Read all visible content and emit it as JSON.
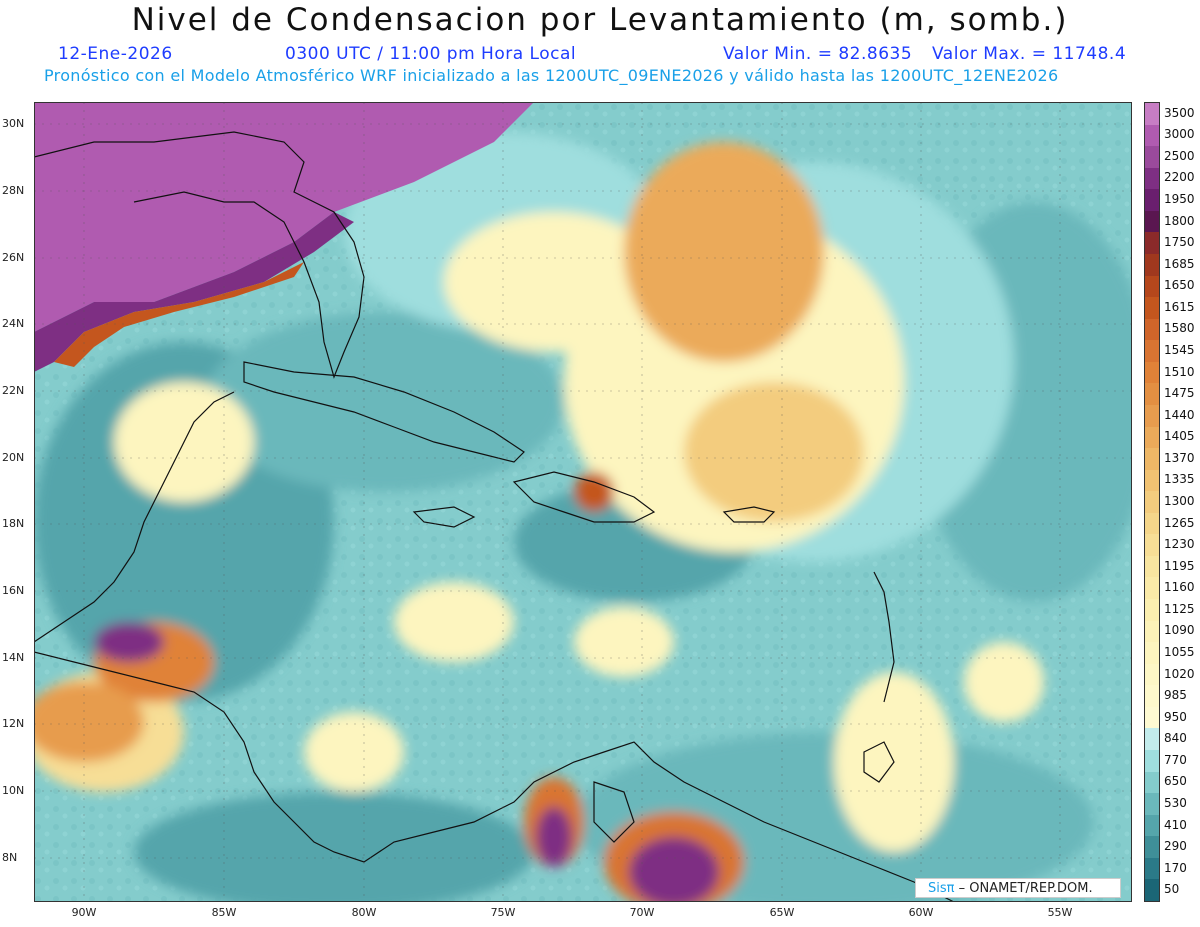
{
  "title": "Nivel de Condensacion por Levantamiento (m, somb.)",
  "date": "12-Ene-2026",
  "time": "0300 UTC / 11:00 pm Hora Local",
  "min_label": "Valor Min. = 82.8635",
  "max_label": "Valor Max. = 11748.4",
  "forecast_line": "Pronóstico con el Modelo Atmosférico WRF inicializado a las 1200UTC_09ENE2026 y válido hasta las  1200UTC_12ENE2026",
  "lat_ticks": [
    "30N",
    "28N",
    "26N",
    "24N",
    "22N",
    "20N",
    "18N",
    "16N",
    "14N",
    "12N",
    "10N",
    "8N"
  ],
  "lon_ticks": [
    "90W",
    "85W",
    "80W",
    "75W",
    "70W",
    "65W",
    "60W",
    "55W"
  ],
  "colorbar": {
    "labels": [
      "3500",
      "3000",
      "2500",
      "2200",
      "1950",
      "1800",
      "1750",
      "1685",
      "1650",
      "1615",
      "1580",
      "1545",
      "1510",
      "1475",
      "1440",
      "1405",
      "1370",
      "1335",
      "1300",
      "1265",
      "1230",
      "1195",
      "1160",
      "1125",
      "1090",
      "1055",
      "1020",
      "985",
      "950",
      "840",
      "770",
      "650",
      "530",
      "410",
      "290",
      "170",
      "50"
    ],
    "colors": [
      "#c77dc4",
      "#b05bb0",
      "#9a4a9c",
      "#7e2f83",
      "#6a1f6e",
      "#5a1650",
      "#8b2a2a",
      "#a0381e",
      "#b5471c",
      "#c4561e",
      "#d0652a",
      "#d97432",
      "#e08238",
      "#e38f42",
      "#e79c4e",
      "#ebaa5a",
      "#eeb766",
      "#f1c272",
      "#f3cc7e",
      "#f5d68a",
      "#f7de96",
      "#f8e5a0",
      "#faeaa8",
      "#fbefb0",
      "#fcf2b8",
      "#fdf5bf",
      "#fdf7c6",
      "#fef9cc",
      "#fefad2",
      "#c3ecec",
      "#9fdede",
      "#84cccc",
      "#6bb8bb",
      "#55a5ab",
      "#3f8f98",
      "#2b7a88",
      "#1b6676"
    ]
  },
  "credit": {
    "brand": "Sisπ",
    "org": " – ONAMET/REP.DOM."
  }
}
